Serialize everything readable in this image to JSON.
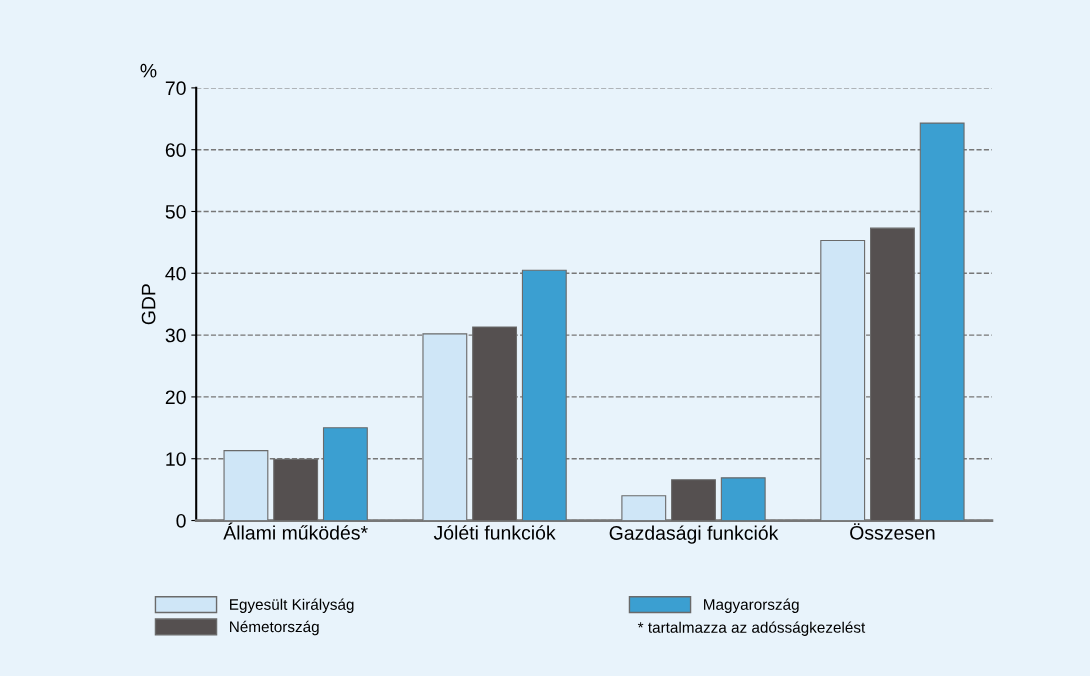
{
  "chart_data": {
    "type": "bar",
    "ylabel": "GDP",
    "categories": [
      "Állami működés*",
      "Jóléti funkciók",
      "Gazdasági funkciók",
      "Összesen"
    ],
    "series": [
      {
        "name": "Egyesült Királyság",
        "color": "#cfe6f7",
        "values": [
          11.3,
          30.2,
          4.0,
          45.3
        ]
      },
      {
        "name": "Németország",
        "color": "#555050",
        "values": [
          9.9,
          31.3,
          6.6,
          47.3
        ]
      },
      {
        "name": "Magyarország",
        "color": "#3b9fd1",
        "values": [
          15.0,
          40.5,
          6.9,
          64.3
        ]
      }
    ],
    "ylim": [
      0,
      70
    ],
    "yticks": [
      0,
      10,
      20,
      30,
      40,
      50,
      60,
      70
    ],
    "grid": "y",
    "legend": "bottom",
    "annotations": [
      "%",
      "* tartalmazza az adósságkezelést"
    ]
  }
}
